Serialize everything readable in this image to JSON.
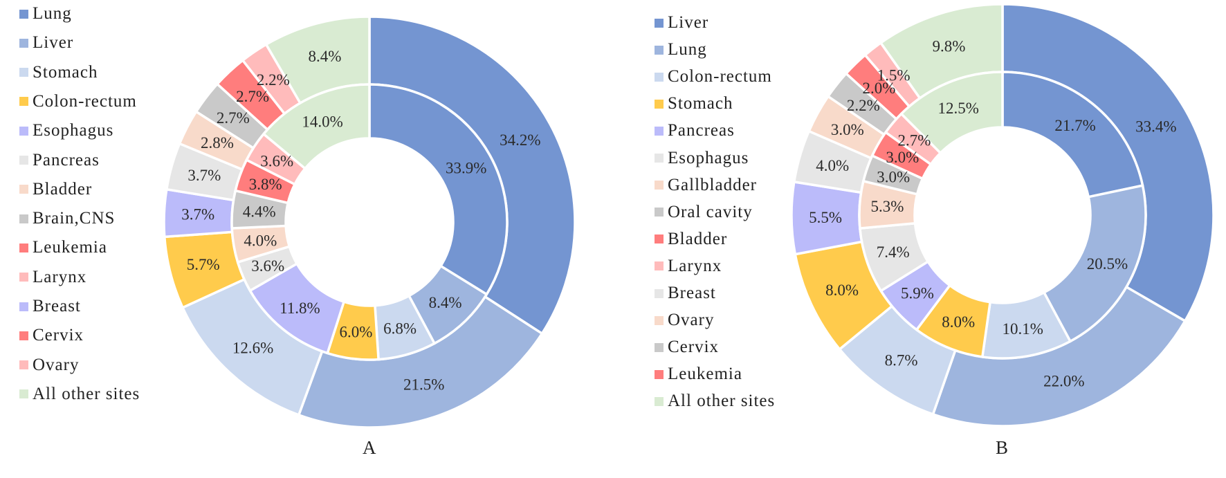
{
  "chart_data": [
    {
      "type": "pie",
      "subtype": "nested-donut",
      "title": "A",
      "legend_position": "left",
      "rings": [
        {
          "name": "outer",
          "categories": [
            "Lung",
            "Liver",
            "Stomach",
            "Colon-rectum",
            "Esophagus",
            "Pancreas",
            "Bladder",
            "Brain,CNS",
            "Leukemia",
            "Larynx",
            "All other sites"
          ],
          "values": [
            34.2,
            21.5,
            12.6,
            5.7,
            3.7,
            3.7,
            2.8,
            2.7,
            2.7,
            2.2,
            8.4
          ],
          "labels": [
            "34.2%",
            "21.5%",
            "12.6%",
            "5.7%",
            "3.7%",
            "3.7%",
            "2.8%",
            "2.7%",
            "2.7%",
            "2.2%",
            "8.4%"
          ],
          "colors": [
            "#7495D1",
            "#9EB5DE",
            "#CBD9EF",
            "#FFCB4C",
            "#BBBBFA",
            "#E6E6E6",
            "#F8DACA",
            "#C9C9C9",
            "#FF7D7D",
            "#FFBBBB",
            "#D9EBD2"
          ]
        },
        {
          "name": "inner",
          "categories": [
            "Lung",
            "Liver",
            "Stomach",
            "Colon-rectum",
            "Breast",
            "Pancreas",
            "Bladder",
            "Brain,CNS",
            "Cervix",
            "Ovary",
            "All other sites"
          ],
          "values": [
            33.9,
            8.4,
            6.8,
            6.0,
            11.8,
            3.6,
            4.0,
            4.4,
            3.8,
            3.6,
            14.0
          ],
          "labels": [
            "33.9%",
            "8.4%",
            "6.8%",
            "6.0%",
            "11.8%",
            "3.6%",
            "4.0%",
            "4.4%",
            "3.8%",
            "3.6%",
            "14.0%"
          ],
          "colors": [
            "#7495D1",
            "#9EB5DE",
            "#CBD9EF",
            "#FFCB4C",
            "#BBBBFA",
            "#E6E6E6",
            "#F8DACA",
            "#C9C9C9",
            "#FF7D7D",
            "#FFBBBB",
            "#D9EBD2"
          ]
        }
      ],
      "legend": [
        {
          "label": "Lung",
          "color": "#7495D1"
        },
        {
          "label": "Liver",
          "color": "#9EB5DE"
        },
        {
          "label": "Stomach",
          "color": "#CBD9EF"
        },
        {
          "label": "Colon-rectum",
          "color": "#FFCB4C"
        },
        {
          "label": "Esophagus",
          "color": "#BBBBFA"
        },
        {
          "label": "Pancreas",
          "color": "#E6E6E6"
        },
        {
          "label": "Bladder",
          "color": "#F8DACA"
        },
        {
          "label": "Brain,CNS",
          "color": "#C9C9C9"
        },
        {
          "label": "Leukemia",
          "color": "#FF7D7D"
        },
        {
          "label": "Larynx",
          "color": "#FFBBBB"
        },
        {
          "label": "Breast",
          "color": "#BBBBFA"
        },
        {
          "label": "Cervix",
          "color": "#FF7D7D"
        },
        {
          "label": "Ovary",
          "color": "#FFBBBB"
        },
        {
          "label": "All other sites",
          "color": "#D9EBD2"
        }
      ]
    },
    {
      "type": "pie",
      "subtype": "nested-donut",
      "title": "B",
      "legend_position": "left",
      "rings": [
        {
          "name": "outer",
          "categories": [
            "Liver",
            "Lung",
            "Colon-rectum",
            "Stomach",
            "Pancreas",
            "Esophagus",
            "Gallbladder",
            "Oral cavity",
            "Bladder",
            "Larynx",
            "All other sites"
          ],
          "values": [
            33.4,
            22.0,
            8.7,
            8.0,
            5.5,
            4.0,
            3.0,
            2.2,
            2.0,
            1.5,
            9.8
          ],
          "labels": [
            "33.4%",
            "22.0%",
            "8.7%",
            "8.0%",
            "5.5%",
            "4.0%",
            "3.0%",
            "2.2%",
            "2.0%",
            "1.5%",
            "9.8%"
          ],
          "colors": [
            "#7495D1",
            "#9EB5DE",
            "#CBD9EF",
            "#FFCB4C",
            "#BBBBFA",
            "#E6E6E6",
            "#F8DACA",
            "#C9C9C9",
            "#FF7D7D",
            "#FFBBBB",
            "#D9EBD2"
          ]
        },
        {
          "name": "inner",
          "categories": [
            "Liver",
            "Lung",
            "Colon-rectum",
            "Stomach",
            "Pancreas",
            "Breast",
            "Ovary",
            "Cervix",
            "Leukemia",
            "Larynx",
            "All other sites"
          ],
          "values": [
            21.7,
            20.5,
            10.1,
            8.0,
            5.9,
            7.4,
            5.3,
            3.0,
            3.0,
            2.7,
            12.5
          ],
          "labels": [
            "21.7%",
            "20.5%",
            "10.1%",
            "8.0%",
            "5.9%",
            "7.4%",
            "5.3%",
            "3.0%",
            "3.0%",
            "2.7%",
            "12.5%"
          ],
          "colors": [
            "#7495D1",
            "#9EB5DE",
            "#CBD9EF",
            "#FFCB4C",
            "#BBBBFA",
            "#E6E6E6",
            "#F8DACA",
            "#C9C9C9",
            "#FF7D7D",
            "#FFBBBB",
            "#D9EBD2"
          ]
        }
      ],
      "legend": [
        {
          "label": "Liver",
          "color": "#7495D1"
        },
        {
          "label": "Lung",
          "color": "#9EB5DE"
        },
        {
          "label": "Colon-rectum",
          "color": "#CBD9EF"
        },
        {
          "label": "Stomach",
          "color": "#FFCB4C"
        },
        {
          "label": "Pancreas",
          "color": "#BBBBFA"
        },
        {
          "label": "Esophagus",
          "color": "#E6E6E6"
        },
        {
          "label": "Gallbladder",
          "color": "#F8DACA"
        },
        {
          "label": "Oral cavity",
          "color": "#C9C9C9"
        },
        {
          "label": "Bladder",
          "color": "#FF7D7D"
        },
        {
          "label": "Larynx",
          "color": "#FFBBBB"
        },
        {
          "label": "Breast",
          "color": "#E6E6E6"
        },
        {
          "label": "Ovary",
          "color": "#F8DACA"
        },
        {
          "label": "Cervix",
          "color": "#C9C9C9"
        },
        {
          "label": "Leukemia",
          "color": "#FF7D7D"
        },
        {
          "label": "All other sites",
          "color": "#D9EBD2"
        }
      ]
    }
  ]
}
